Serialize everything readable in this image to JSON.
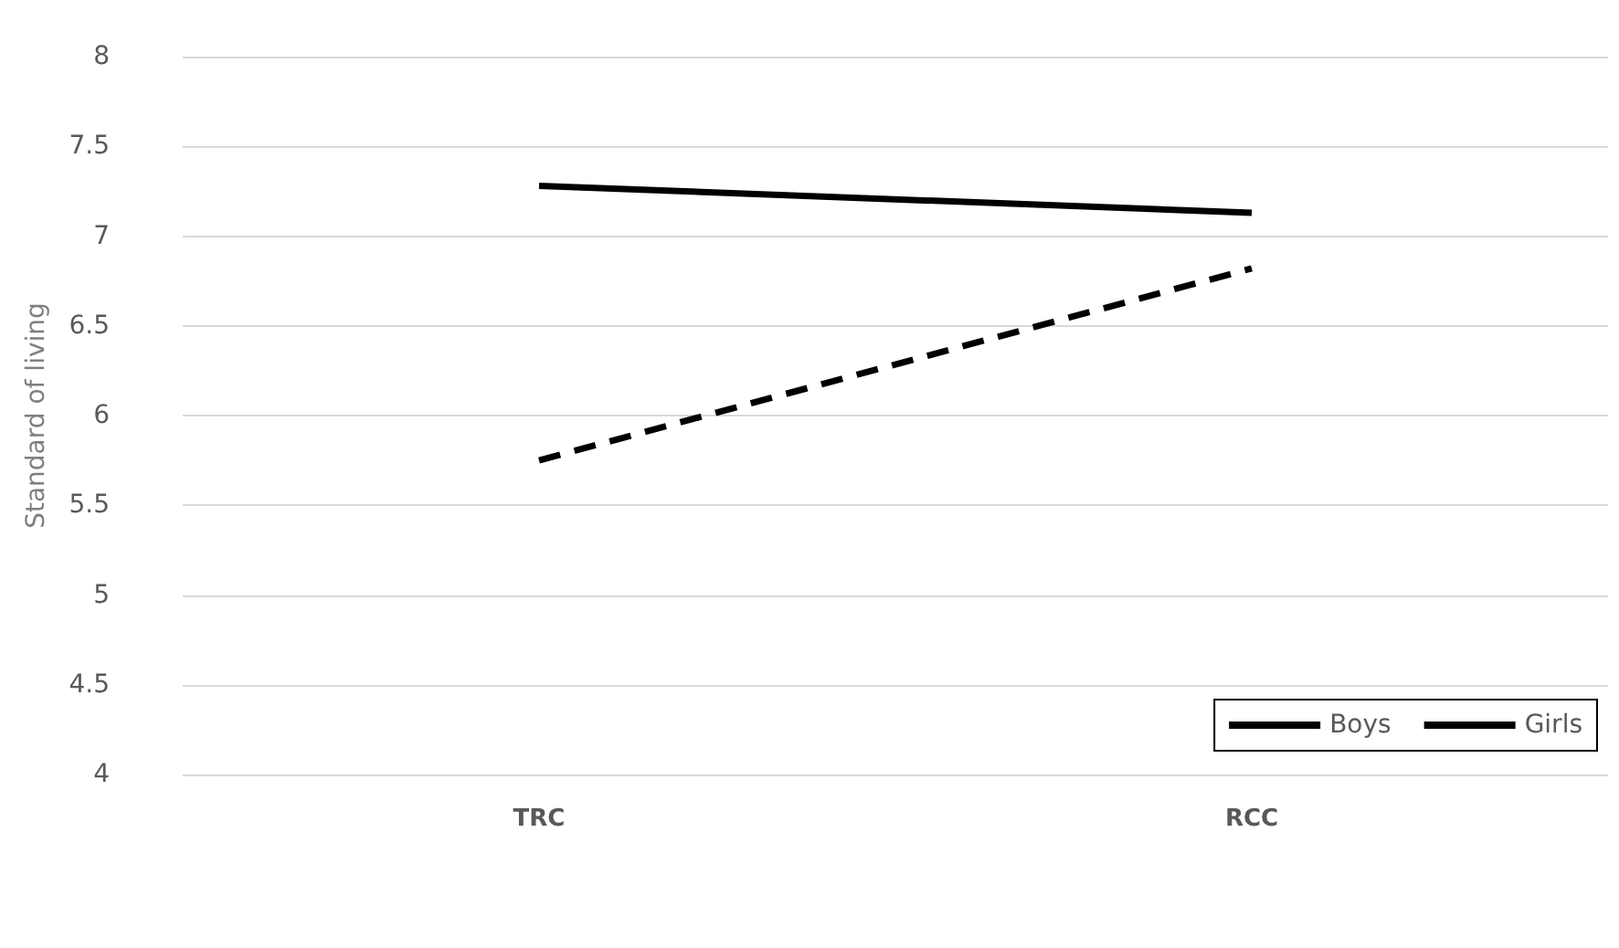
{
  "chart_data": {
    "type": "line",
    "ylabel": "Standard of living",
    "categories": [
      "TRC",
      "RCC"
    ],
    "series": [
      {
        "name": "Boys",
        "color": "#000000",
        "values": [
          7.28,
          7.13
        ],
        "line_style": "solid"
      },
      {
        "name": "Girls",
        "color": "#000000",
        "values": [
          5.75,
          6.82
        ],
        "line_style": "dashed"
      }
    ],
    "ylim": [
      4,
      8
    ],
    "yticks": [
      4,
      4.5,
      5,
      5.5,
      6,
      6.5,
      7,
      7.5,
      8
    ],
    "grid": "y",
    "legend": "bottom right",
    "marker": "none"
  }
}
